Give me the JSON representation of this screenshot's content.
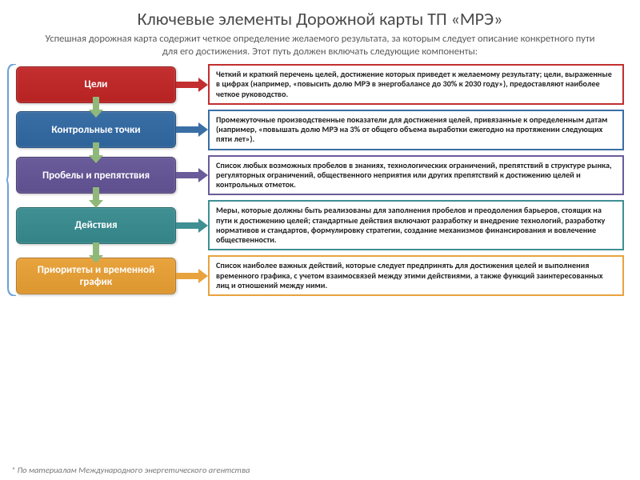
{
  "title": "Ключевые элементы Дорожной карты ТП «МРЭ»",
  "subtitle": "Успешная дорожная карта содержит четкое определение желаемого результата, за которым следует описание конкретного пути для его достижения. Этот путь должен включать следующие компоненты:",
  "footnote": "* По материалам Международного энергетического агентства",
  "colors": {
    "red": {
      "fill": "#c32f2f",
      "border": "#c32f2f"
    },
    "blue": {
      "fill": "#3a6fa6",
      "border": "#3a6fa6"
    },
    "purple": {
      "fill": "#6a5b9a",
      "border": "#6a5b9a"
    },
    "teal": {
      "fill": "#3f8f93",
      "border": "#3f8f93"
    },
    "orange": {
      "fill": "#e8a33d",
      "border": "#e8a33d"
    },
    "arrow_green": "#8fb87a",
    "bracket": "#6aa0d8"
  },
  "rows": [
    {
      "key": "red",
      "label": "Цели",
      "desc": "Четкий и краткий перечень целей, достижение которых приведет к желаемому результату;\nцели, выраженные в цифрах (например, «повысить долю МРЭ в энергобалансе до 30% к 2030 году»), предоставляют наиболее четкое руководство."
    },
    {
      "key": "blue",
      "label": "Контрольные точки",
      "desc": "Промежуточные производственные показатели для достижения целей, привязанные к определенным датам (например, «повышать долю МРЭ на 3% от общего объема выработки ежегодно на протяжении следующих пяти лет»)."
    },
    {
      "key": "purple",
      "label": "Пробелы и препятствия",
      "desc": "Список любых возможных пробелов в знаниях, технологических ограничений, препятствий в структуре рынка, регуляторных ограничений, общественного неприятия или других препятствий к достижению целей и контрольных отметок."
    },
    {
      "key": "teal",
      "label": "Действия",
      "desc": "Меры, которые должны быть реализованы для заполнения пробелов и преодоления барьеров, стоящих на пути к достижению целей; стандартные действия включают разработку и внедрение технологий, разработку нормативов и стандартов, формулировку стратегии, создание механизмов финансирования и вовлечение общественности."
    },
    {
      "key": "orange",
      "label": "Приоритеты и временной график",
      "desc": "Список наиболее важных действий, которые следует предпринять для достижения целей и выполнения временного графика, с учетом взаимосвязей между этими действиями, а также функций заинтересованных лиц и отношений между ними."
    }
  ]
}
